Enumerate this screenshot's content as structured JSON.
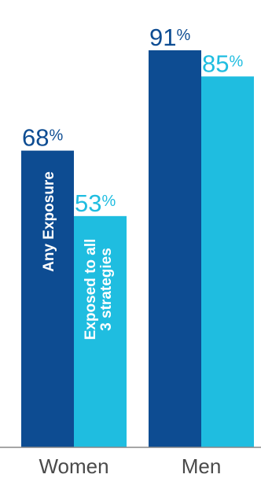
{
  "chart_data": {
    "type": "bar",
    "categories": [
      "Women",
      "Men"
    ],
    "series": [
      {
        "name": "Any Exposure",
        "values": [
          68,
          91
        ],
        "color": "#0d4c92"
      },
      {
        "name": "Exposed to all 3 strategies",
        "values": [
          53,
          85
        ],
        "color": "#1fbde0"
      }
    ],
    "value_suffix": "%",
    "in_bar_labels": {
      "any_exposure": "Any Exposure",
      "all_three_line1": "Exposed to all",
      "all_three_line2": "3 strategies"
    },
    "ylim": [
      0,
      100
    ],
    "axis_line_color": "#888888"
  }
}
